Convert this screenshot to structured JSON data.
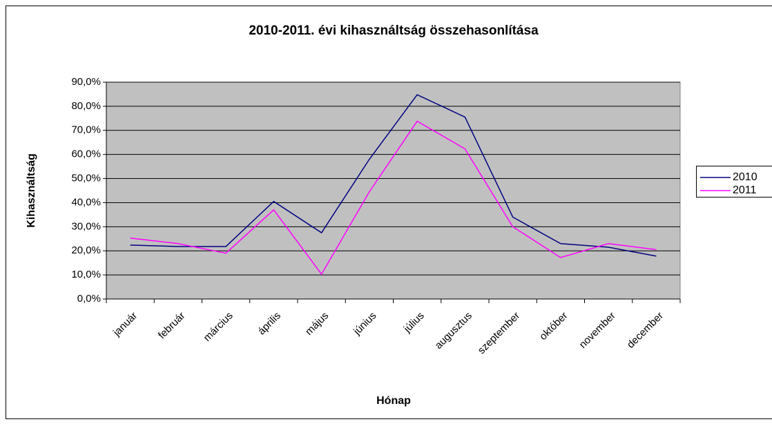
{
  "chart_data": {
    "type": "line",
    "title": "2010-2011. évi kihasználtság összehasonlítása",
    "x_label": "Hónap",
    "y_label": "Kihasználtság",
    "categories": [
      "január",
      "február",
      "március",
      "április",
      "május",
      "június",
      "július",
      "augusztus",
      "szeptember",
      "október",
      "november",
      "december"
    ],
    "series": [
      {
        "name": "2010",
        "color": "#000080",
        "values": [
          22.4,
          21.8,
          21.8,
          40.5,
          27.5,
          58,
          84.8,
          75.5,
          34,
          23,
          21.5,
          17.8
        ]
      },
      {
        "name": "2011",
        "color": "#ff00ff",
        "values": [
          25.3,
          23,
          19,
          37,
          10.3,
          44.5,
          73.8,
          62.3,
          30,
          17.2,
          23,
          20.5
        ]
      }
    ],
    "ylim": [
      0,
      90
    ],
    "yticks": [
      {
        "value": 0,
        "label": "0,0%"
      },
      {
        "value": 10,
        "label": "10,0%"
      },
      {
        "value": 20,
        "label": "20,0%"
      },
      {
        "value": 30,
        "label": "30,0%"
      },
      {
        "value": 40,
        "label": "40,0%"
      },
      {
        "value": 50,
        "label": "50,0%"
      },
      {
        "value": 60,
        "label": "60,0%"
      },
      {
        "value": 70,
        "label": "70,0%"
      },
      {
        "value": 80,
        "label": "80,0%"
      },
      {
        "value": 90,
        "label": "90,0%"
      }
    ],
    "grid": true,
    "legend": "right"
  }
}
